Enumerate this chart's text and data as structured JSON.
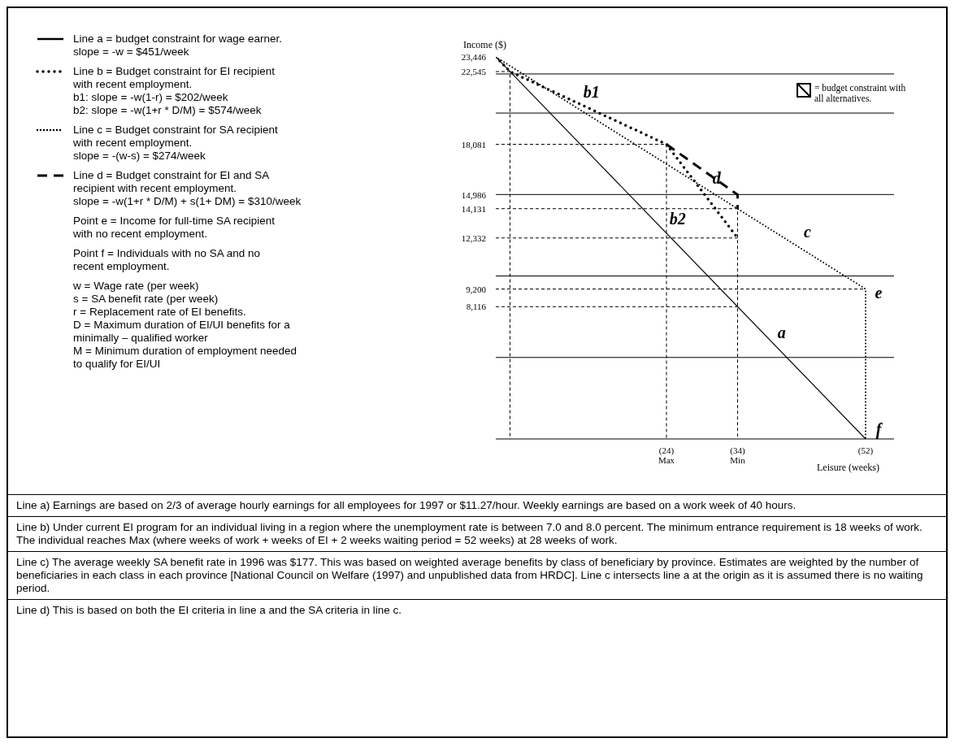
{
  "chart_data": {
    "type": "line",
    "xlabel": "Leisure (weeks)",
    "ylabel": "Income ($)",
    "legend": "left",
    "xlim": [
      0,
      56
    ],
    "ylim": [
      0,
      23446
    ],
    "xticks": [
      {
        "value": 24,
        "label": "(24)\nMax"
      },
      {
        "value": 34,
        "label": "(34)\nMin"
      },
      {
        "value": 52,
        "label": "(52)"
      }
    ],
    "yticks": [
      {
        "value": 23446,
        "label": "23,446"
      },
      {
        "value": 22545,
        "label": "22,545"
      },
      {
        "value": 18081,
        "label": "18,081"
      },
      {
        "value": 14986,
        "label": "14,986"
      },
      {
        "value": 14131,
        "label": "14,131"
      },
      {
        "value": 12332,
        "label": "12,332"
      },
      {
        "value": 9200,
        "label": "9,200"
      },
      {
        "value": 8116,
        "label": "8,116"
      }
    ],
    "ref_lines": [
      {
        "axis": "y",
        "value": 5000
      },
      {
        "axis": "y",
        "value": 10000
      },
      {
        "axis": "y",
        "value": 15000
      },
      {
        "axis": "y",
        "value": 20000
      },
      {
        "axis": "y",
        "value": 22400
      }
    ],
    "series": [
      {
        "name": "Line a = budget constraint for wage earner.\nslope = -w = $451/week",
        "color": "#000000",
        "line_style": "solid",
        "x": [
          0,
          52
        ],
        "values": [
          23446,
          0
        ]
      },
      {
        "name": "Line b = Budget constraint for EI recipient\nwith recent employment.\nb1: slope = -w(1-r) = $202/week\nb2: slope = -w(1+r * D/M) = $574/week",
        "color": "#000000",
        "line_style": "dotted",
        "x": [
          0,
          2,
          24,
          34
        ],
        "values": [
          23446,
          22545,
          18081,
          12332
        ]
      },
      {
        "name": "Line c = Budget constraint for SA recipient\nwith recent employment.\nslope = -(w-s) = $274/week",
        "color": "#000000",
        "line_style": "dotted",
        "x": [
          0,
          34,
          52,
          52
        ],
        "values": [
          23446,
          14131,
          9200,
          0
        ]
      },
      {
        "name": "Line d = Budget constraint for EI and SA\nrecipient with recent employment.\nslope = -w(1+r * D/M) + s(1+ DM) = $310/week",
        "color": "#000000",
        "line_style": "dashed",
        "x": [
          24,
          34,
          34
        ],
        "values": [
          18081,
          14986,
          14131
        ]
      },
      {
        "color": "#000000",
        "line_style": "dashed",
        "x": [
          0,
          2,
          2
        ],
        "values": [
          22545,
          22545,
          0
        ]
      },
      {
        "color": "#000000",
        "line_style": "dashed",
        "x": [
          0,
          24,
          24
        ],
        "values": [
          18081,
          18081,
          0
        ]
      },
      {
        "color": "#000000",
        "line_style": "dashed",
        "x": [
          0,
          34,
          34
        ],
        "values": [
          14131,
          14131,
          0
        ]
      },
      {
        "color": "#000000",
        "line_style": "dashed",
        "x": [
          0,
          34
        ],
        "values": [
          12332,
          12332
        ]
      },
      {
        "color": "#000000",
        "line_style": "dashed",
        "x": [
          0,
          34
        ],
        "values": [
          8116,
          8116
        ]
      },
      {
        "color": "#000000",
        "line_style": "dashed",
        "x": [
          0,
          52
        ],
        "values": [
          9200,
          9200
        ]
      }
    ],
    "annotations": [
      {
        "text": "a",
        "x": 37,
        "y": 6759
      },
      {
        "text": "b1",
        "x": 13,
        "y": 20312
      },
      {
        "text": "b2",
        "x": 29,
        "y": 15206
      },
      {
        "text": "c",
        "x": 42,
        "y": 11939
      },
      {
        "text": "d",
        "x": 29,
        "y": 16531
      },
      {
        "text": "e",
        "x": 52,
        "y": 9200
      },
      {
        "text": "f",
        "x": 52,
        "y": 0
      },
      "= budget constraint with all alternatives.",
      "Point e = Income for full-time SA recipient\nwith no recent employment.",
      "Point f = Individuals with no SA and no\nrecent employment.",
      "w = Wage rate (per week)",
      "s = SA benefit rate (per week)",
      "r = Replacement rate of EI benefits.",
      "D = Maximum duration of EI/UI benefits for a minimally – qualified worker",
      "M = Minimum duration of employment needed to qualify for EI/UI",
      "Line a) Earnings are based on 2/3 of average hourly earnings for all employees for 1997 or $11.27/hour.  Weekly earnings are based on a work week of 40 hours.",
      "Line b) Under current EI program for an individual living in a region where the unemployment rate is between 7.0 and 8.0 percent. The minimum entrance requirement is 18 weeks of work.  The individual reaches Max (where weeks of work + weeks of EI + 2 weeks waiting period = 52 weeks) at 28 weeks of work.",
      "Line c) The average weekly SA benefit rate in 1996 was $177. This was based on weighted average benefits by class of beneficiary by province. Estimates are weighted by the number of beneficiaries in each class in each province [National Council on Welfare (1997) and unpublished data from HRDC]. Line c intersects line a at the origin as it is assumed there is no waiting period.",
      "Line d) This is based on both the EI criteria in line a and the SA criteria in line c."
    ]
  }
}
